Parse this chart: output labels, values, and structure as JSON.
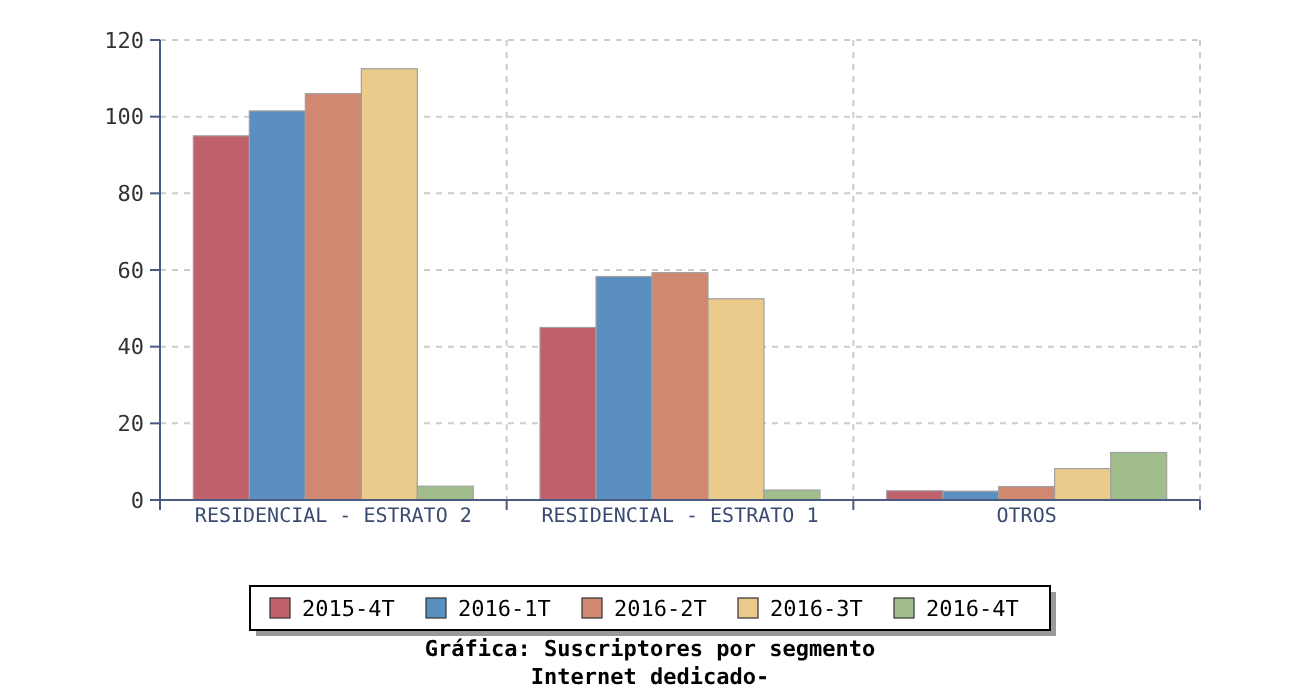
{
  "chart_data": {
    "type": "bar",
    "title": "Gráfica: Suscriptores por segmento",
    "subtitle": "Internet dedicado-",
    "categories": [
      "RESIDENCIAL - ESTRATO 2",
      "RESIDENCIAL - ESTRATO 1",
      "OTROS"
    ],
    "series": [
      {
        "name": "2015-4T",
        "color": "#c0606a",
        "values": [
          95,
          45,
          2.4
        ]
      },
      {
        "name": "2016-1T",
        "color": "#5b8fc0",
        "values": [
          101.5,
          58.3,
          2.3
        ]
      },
      {
        "name": "2016-2T",
        "color": "#d08870",
        "values": [
          106,
          59.3,
          3.5
        ]
      },
      {
        "name": "2016-3T",
        "color": "#ebcb8c",
        "values": [
          112.5,
          52.5,
          8.2
        ]
      },
      {
        "name": "2016-4T",
        "color": "#a2bd8c",
        "values": [
          3.6,
          2.6,
          12.4
        ]
      }
    ],
    "ylim": [
      0,
      120
    ],
    "yticks": [
      0,
      20,
      40,
      60,
      80,
      100,
      120
    ],
    "grid": true,
    "legend": "bottom"
  }
}
